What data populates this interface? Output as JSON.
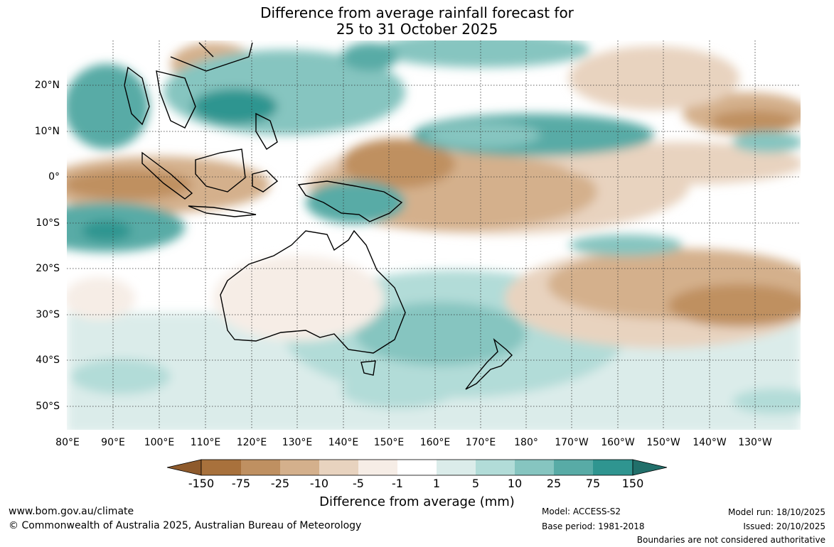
{
  "title": {
    "line1": "Difference from average rainfall forecast for",
    "line2": "25 to 31 October 2025"
  },
  "map": {
    "region": "Australia, Indian Ocean and western/central Pacific",
    "lat_labels": [
      "20°N",
      "10°N",
      "0°",
      "10°S",
      "20°S",
      "30°S",
      "40°S",
      "50°S"
    ],
    "lon_labels": [
      "80°E",
      "90°E",
      "100°E",
      "110°E",
      "120°E",
      "130°E",
      "140°E",
      "150°E",
      "160°E",
      "170°E",
      "180°",
      "170°W",
      "160°W",
      "150°W",
      "140°W",
      "130°W"
    ]
  },
  "colorbar": {
    "title": "Difference from average (mm)",
    "ticks": [
      "-150",
      "-75",
      "-25",
      "-10",
      "-5",
      "-1",
      "1",
      "5",
      "10",
      "25",
      "75",
      "150"
    ],
    "colors": [
      "#8e5a2c",
      "#a8713c",
      "#bf9061",
      "#d4b08c",
      "#e8d3bf",
      "#f6ede6",
      "#ffffff",
      "#dbecea",
      "#b2dcd8",
      "#86c5c0",
      "#58aba6",
      "#2f9590",
      "#216f6a"
    ]
  },
  "footer": {
    "website": "www.bom.gov.au/climate",
    "copyright": "© Commonwealth of Australia 2025, Australian Bureau of Meteorology",
    "model": "Model: ACCESS-S2",
    "base_period": "Base period: 1981-2018",
    "model_run": "Model run: 18/10/2025",
    "issued": "Issued: 20/10/2025",
    "boundaries": "Boundaries are not considered authoritative"
  }
}
